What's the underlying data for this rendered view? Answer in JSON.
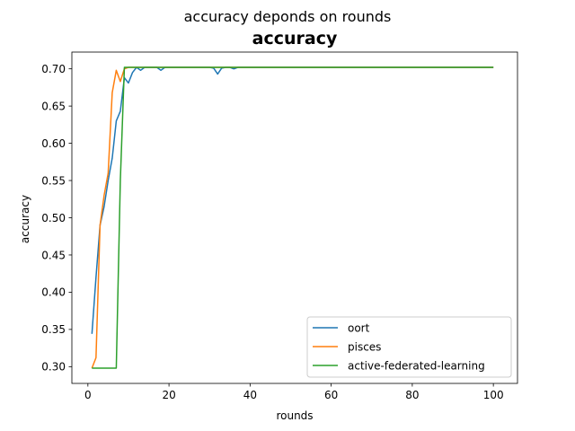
{
  "chart_data": {
    "type": "line",
    "suptitle": "accuracy deponds on rounds",
    "title": "accuracy",
    "xlabel": "rounds",
    "ylabel": "accuracy",
    "xlim": [
      -3.95,
      105.95
    ],
    "ylim": [
      0.2775,
      0.7225
    ],
    "xticks": [
      0,
      20,
      40,
      60,
      80,
      100
    ],
    "yticks": [
      0.3,
      0.35,
      0.4,
      0.45,
      0.5,
      0.55,
      0.6,
      0.65,
      0.7
    ],
    "ytick_labels": [
      "0.30",
      "0.35",
      "0.40",
      "0.45",
      "0.50",
      "0.55",
      "0.60",
      "0.65",
      "0.70"
    ],
    "grid": false,
    "legend_position": "lower-right",
    "series": [
      {
        "name": "oort",
        "color": "#1f77b4",
        "x": [
          1,
          2,
          3,
          4,
          5,
          6,
          7,
          8,
          9,
          10,
          11,
          12,
          13,
          14,
          15,
          16,
          17,
          18,
          19,
          20,
          22,
          25,
          28,
          30,
          31,
          32,
          33,
          34,
          35,
          36,
          37,
          40,
          50,
          60,
          70,
          80,
          90,
          100
        ],
        "y": [
          0.344,
          0.42,
          0.49,
          0.515,
          0.55,
          0.58,
          0.63,
          0.643,
          0.688,
          0.681,
          0.695,
          0.702,
          0.698,
          0.702,
          0.702,
          0.702,
          0.702,
          0.698,
          0.702,
          0.702,
          0.702,
          0.702,
          0.702,
          0.702,
          0.701,
          0.693,
          0.701,
          0.702,
          0.702,
          0.7,
          0.702,
          0.702,
          0.702,
          0.702,
          0.702,
          0.702,
          0.702,
          0.702
        ]
      },
      {
        "name": "pisces",
        "color": "#ff7f0e",
        "x": [
          1,
          2,
          3,
          4,
          5,
          6,
          7,
          8,
          9,
          10,
          11,
          12,
          13,
          15,
          20,
          30,
          40,
          50,
          60,
          70,
          80,
          90,
          100
        ],
        "y": [
          0.298,
          0.312,
          0.49,
          0.53,
          0.56,
          0.668,
          0.698,
          0.683,
          0.7,
          0.702,
          0.702,
          0.702,
          0.702,
          0.702,
          0.702,
          0.702,
          0.702,
          0.702,
          0.702,
          0.702,
          0.702,
          0.702,
          0.702
        ]
      },
      {
        "name": "active-federated-learning",
        "color": "#2ca02c",
        "x": [
          1,
          2,
          3,
          4,
          5,
          6,
          7,
          8,
          9,
          10,
          11,
          12,
          15,
          20,
          30,
          40,
          50,
          60,
          70,
          80,
          90,
          100
        ],
        "y": [
          0.298,
          0.298,
          0.298,
          0.298,
          0.298,
          0.298,
          0.298,
          0.55,
          0.702,
          0.702,
          0.702,
          0.702,
          0.702,
          0.702,
          0.702,
          0.702,
          0.702,
          0.702,
          0.702,
          0.702,
          0.702,
          0.702
        ]
      }
    ]
  }
}
